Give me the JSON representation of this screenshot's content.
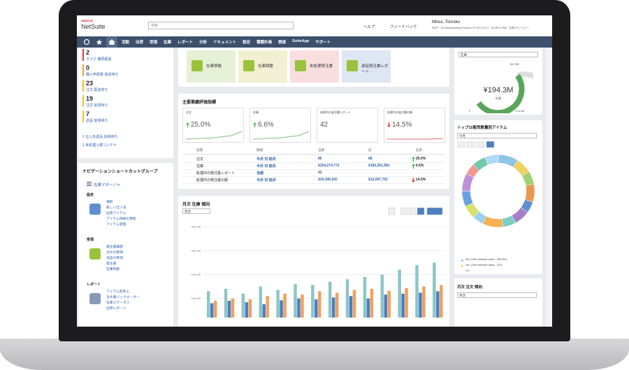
{
  "header": {
    "logo_top": "ORACLE",
    "logo": "NetSuite",
    "search_placeholder": "検索",
    "help": "ヘルプ",
    "feedback": "フィードバック",
    "user": "Mitsui, Tomoko",
    "user_role": "SDFP - SS Manufacturing Premium JP v24.2.11.27 - SS MFG PRM - 在庫マネージャー"
  },
  "nav": [
    "活動",
    "出荷",
    "受領",
    "在庫",
    "レポート",
    "分析",
    "ドキュメント",
    "設定",
    "需要計画",
    "調達",
    "SuiteApp",
    "サポート"
  ],
  "reminders": [
    {
      "count": 2,
      "label": "タスク 期限超過",
      "color": "#d9383a"
    },
    {
      "count": 0,
      "label": "購入申請書 承認待ち",
      "color": "#f0a030"
    },
    {
      "count": 23,
      "label": "注文 配送待ち",
      "color": "#f0c030"
    },
    {
      "count": 19,
      "label": "注文 受領待ち",
      "color": "#f0c030"
    },
    {
      "count": 7,
      "label": "返品 受領待ち",
      "color": "#f0c030"
    }
  ],
  "reminder_links": [
    "1 仕入先返品 出荷待ち",
    "1 未処理入庫コンテナ"
  ],
  "nav_shortcuts": {
    "title": "ナビゲーションショートカットグループ",
    "manager": "在庫マネージャ",
    "groups": [
      {
        "title": "設定",
        "links": [
          "場所",
          "新しい仕入先",
          "出荷アイテム",
          "アイテム価格の更新",
          "アイテム管理"
        ]
      },
      {
        "title": "受領",
        "links": [
          "発注書履歴",
          "注文の受領",
          "返品の受領",
          "発注書",
          "在庫移動"
        ]
      },
      {
        "title": "レポート",
        "links": [
          "アイテム別売上",
          "注文書バックオーダー",
          "在庫ステータス",
          "出荷レポート"
        ]
      }
    ]
  },
  "shortcuts": [
    {
      "label": "在庫移動",
      "color": "#e6f0d6"
    },
    {
      "label": "在庫調整",
      "color": "#f2f0d2"
    },
    {
      "label": "未処理発注書",
      "color": "#f8dede"
    },
    {
      "label": "遅延発注書レポート",
      "color": "#dde6f2"
    }
  ],
  "kpi": {
    "title": "主要業績評価指標",
    "cards": [
      {
        "label": "注文",
        "value": "25.0%",
        "direction": "up"
      },
      {
        "label": "在庫",
        "value": "6.6%",
        "direction": "up"
      },
      {
        "label": "処理中の発注書レポート",
        "value": "42",
        "direction": null
      },
      {
        "label": "処理中の発注書の額",
        "value": "14.5%",
        "direction": "down"
      }
    ],
    "table": {
      "headers": [
        "指標",
        "期間",
        "当期",
        "前",
        "変更"
      ],
      "rows": [
        {
          "cells": [
            "注文",
            "今月 対 前月",
            "85",
            "68",
            "25.0%"
          ],
          "direction": "up"
        },
        {
          "cells": [
            "在庫",
            "今月 対 前月",
            "¥194,274,772",
            "¥182,261,581",
            "6.6%"
          ],
          "direction": "up"
        },
        {
          "cells": [
            "処理中の発注書レポート",
            "当期",
            "42",
            null,
            null
          ],
          "direction": null
        },
        {
          "cells": [
            "処理中の発注書の額",
            "今月 対 前月",
            "¥10,340,520",
            "¥12,097,752",
            "14.5%"
          ],
          "direction": "down"
        }
      ]
    }
  },
  "inventory_trend": {
    "title": "月次 在庫 傾向",
    "period": "月次",
    "ylim": [
      60,
      265
    ],
    "yticks": [
      {
        "value": 250,
        "label": "250.0M"
      },
      {
        "value": 200,
        "label": "200.0M"
      },
      {
        "value": 150,
        "label": "150.0M"
      },
      {
        "value": 100,
        "label": "100.0M"
      }
    ],
    "series": [
      {
        "color": "#8cc5c8",
        "values": [
          115,
          120,
          110,
          125,
          118,
          130,
          128,
          135,
          140,
          145,
          150,
          160,
          170,
          175
        ]
      },
      {
        "color": "#4a7fc1",
        "values": [
          90,
          95,
          92,
          88,
          96,
          100,
          98,
          102,
          105,
          100,
          108,
          110,
          112,
          115
        ]
      },
      {
        "color": "#f0a060",
        "values": [
          95,
          100,
          98,
          105,
          110,
          108,
          115,
          112,
          118,
          120,
          116,
          122,
          125,
          128
        ]
      }
    ]
  },
  "gauge": {
    "selector": "在庫",
    "value_label": "¥194.3M",
    "value": 194.3,
    "caption": "在庫",
    "min_label": "0",
    "target_label": "182.3M",
    "max_label": "274.4M",
    "max": 274.4
  },
  "top_items": {
    "title": "トップ15販売数量別アイテム",
    "period": "今月",
    "values": [
      9,
      7,
      6,
      8,
      5,
      7,
      6,
      9,
      5,
      6,
      7,
      8,
      5,
      6,
      6
    ],
    "colors": [
      "#8cc5e8",
      "#f0d060",
      "#a0d070",
      "#e89850",
      "#5f8fd0",
      "#a67fc8",
      "#7ccfc0",
      "#f5b050",
      "#9ad0f0",
      "#d8e070",
      "#6aa0e0",
      "#c090d8",
      "#f09890",
      "#70c8a8",
      "#b0d8f8"
    ],
    "legend": [
      {
        "label": "NN_Cloth ethernet cable - 50ft Red",
        "color": "#8cc5e8"
      },
      {
        "label": "NN_Cloth ethernet cable - 30 ft",
        "color": "#f0d060"
      }
    ],
    "page": "1/4"
  },
  "order_trend": {
    "title": "月次 注文 傾向",
    "period": "月次"
  }
}
